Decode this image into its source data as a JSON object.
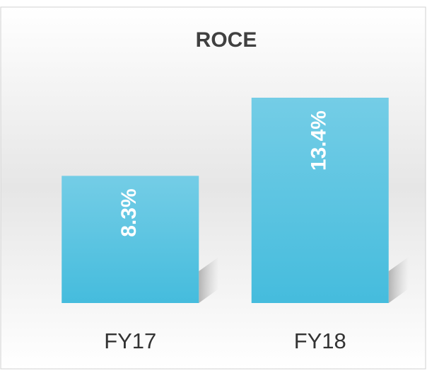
{
  "chart_data": {
    "type": "bar",
    "title": "ROCE",
    "categories": [
      "FY17",
      "FY18"
    ],
    "values": [
      8.3,
      13.4
    ],
    "value_labels": [
      "8.3%",
      "13.4%"
    ],
    "color": "#4cbfdf"
  }
}
